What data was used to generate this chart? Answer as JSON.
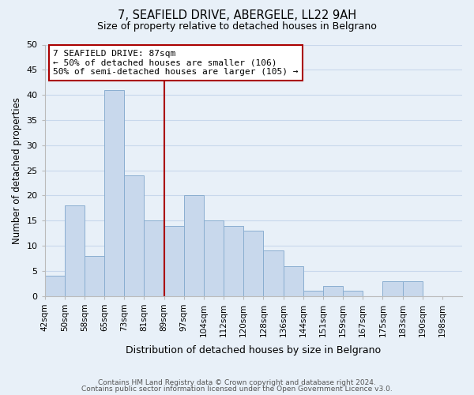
{
  "title": "7, SEAFIELD DRIVE, ABERGELE, LL22 9AH",
  "subtitle": "Size of property relative to detached houses in Belgrano",
  "xlabel": "Distribution of detached houses by size in Belgrano",
  "ylabel": "Number of detached properties",
  "bin_labels": [
    "42sqm",
    "50sqm",
    "58sqm",
    "65sqm",
    "73sqm",
    "81sqm",
    "89sqm",
    "97sqm",
    "104sqm",
    "112sqm",
    "120sqm",
    "128sqm",
    "136sqm",
    "144sqm",
    "151sqm",
    "159sqm",
    "167sqm",
    "175sqm",
    "183sqm",
    "190sqm",
    "198sqm"
  ],
  "bar_values": [
    4,
    18,
    8,
    41,
    24,
    15,
    14,
    20,
    15,
    14,
    13,
    9,
    6,
    1,
    2,
    1,
    0,
    3,
    3,
    0,
    0
  ],
  "bar_color": "#c8d8ec",
  "bar_edge_color": "#8aaed0",
  "vline_x_index": 6,
  "vline_color": "#aa0000",
  "annotation_line1": "7 SEAFIELD DRIVE: 87sqm",
  "annotation_line2": "← 50% of detached houses are smaller (106)",
  "annotation_line3": "50% of semi-detached houses are larger (105) →",
  "annotation_box_color": "#ffffff",
  "annotation_box_edge": "#aa0000",
  "ylim": [
    0,
    50
  ],
  "yticks": [
    0,
    5,
    10,
    15,
    20,
    25,
    30,
    35,
    40,
    45,
    50
  ],
  "grid_color": "#c8d8ec",
  "footer_line1": "Contains HM Land Registry data © Crown copyright and database right 2024.",
  "footer_line2": "Contains public sector information licensed under the Open Government Licence v3.0.",
  "bg_color": "#e8f0f8"
}
